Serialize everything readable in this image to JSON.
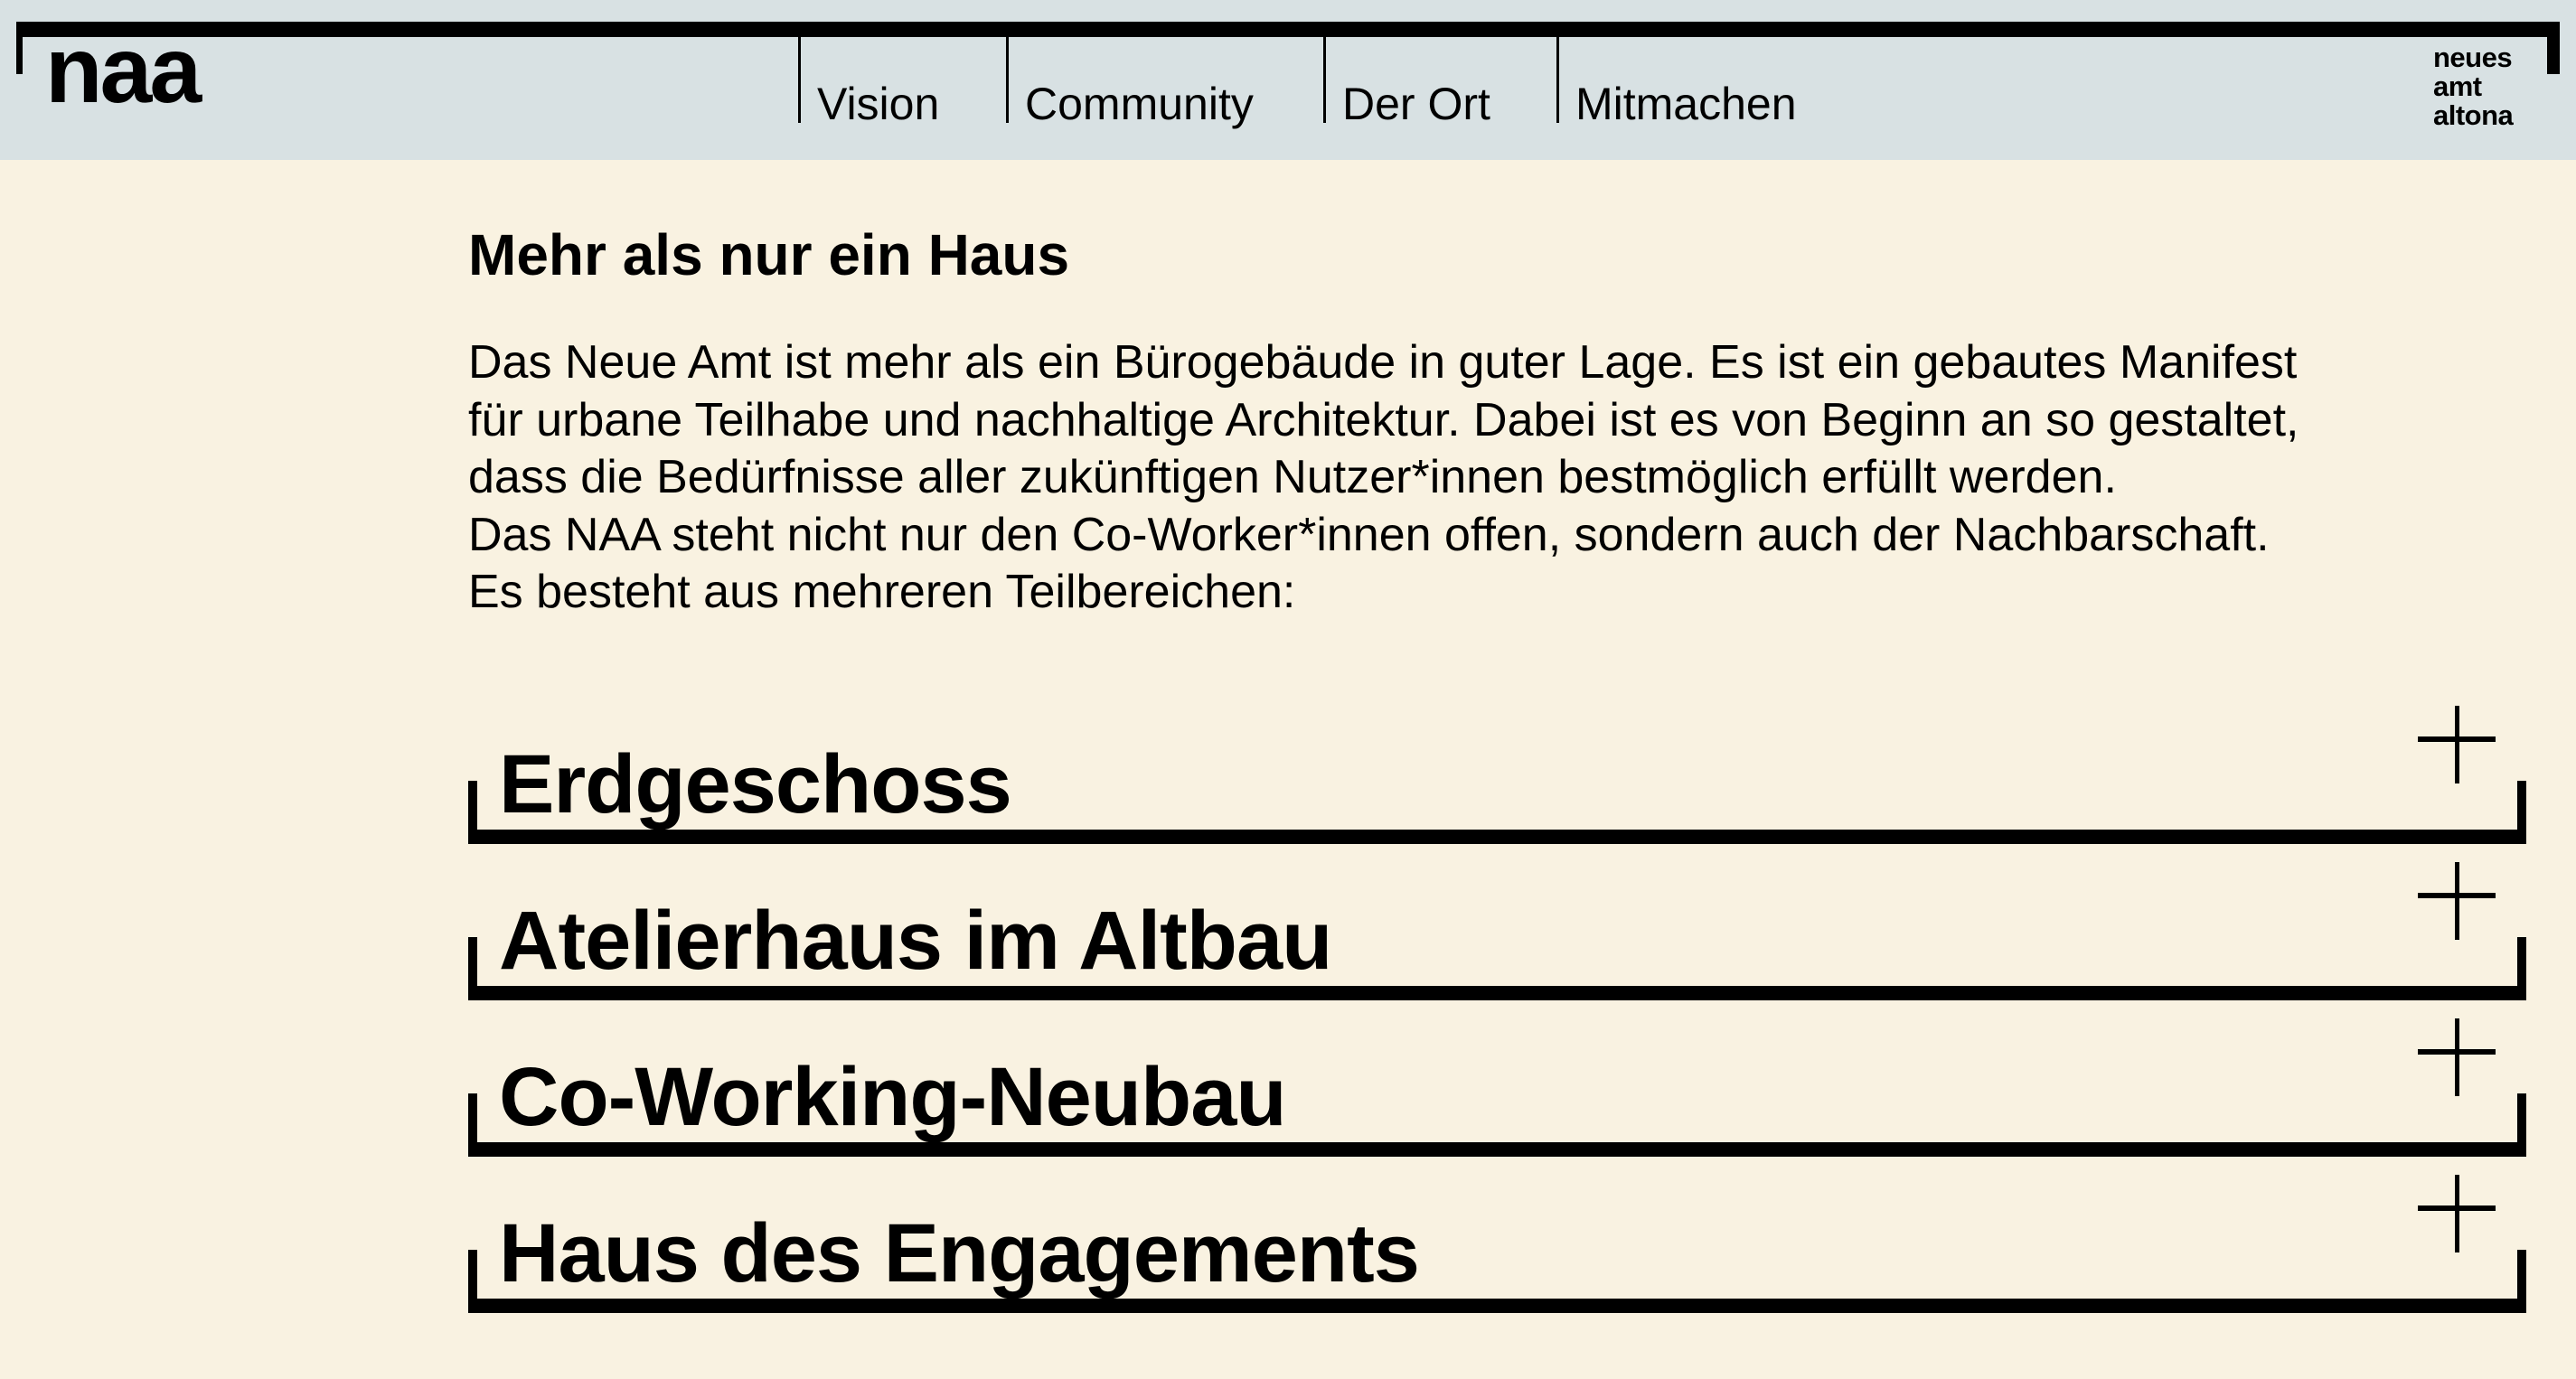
{
  "header": {
    "logo": "naa",
    "nav": [
      "Vision",
      "Community",
      "Der Ort",
      "Mitmachen"
    ],
    "brand_lines": [
      "neues",
      "amt",
      "altona"
    ]
  },
  "main": {
    "heading": "Mehr als nur ein Haus",
    "paragraph": [
      "Das Neue Amt ist mehr als ein Bürogebäude in guter Lage. Es ist ein gebautes Manifest",
      "für urbane Teilhabe und nachhaltige Architektur. Dabei ist es von Beginn an so gestaltet,",
      "dass die Bedürfnisse aller zukünftigen Nutzer*innen bestmöglich erfüllt werden.",
      "Das NAA steht nicht nur den Co-Worker*innen offen, sondern auch der Nachbarschaft.",
      "Es besteht aus mehreren Teilbereichen:"
    ],
    "sections": [
      {
        "title": "Erdgeschoss",
        "icon": "plus-icon"
      },
      {
        "title": "Atelierhaus im Altbau",
        "icon": "plus-icon"
      },
      {
        "title": "Co-Working-Neubau",
        "icon": "plus-icon"
      },
      {
        "title": "Haus des Engagements",
        "icon": "plus-icon"
      }
    ]
  },
  "colors": {
    "header_bg": "#d8e1e3",
    "page_bg": "#f9f2e1",
    "ink": "#000000"
  }
}
